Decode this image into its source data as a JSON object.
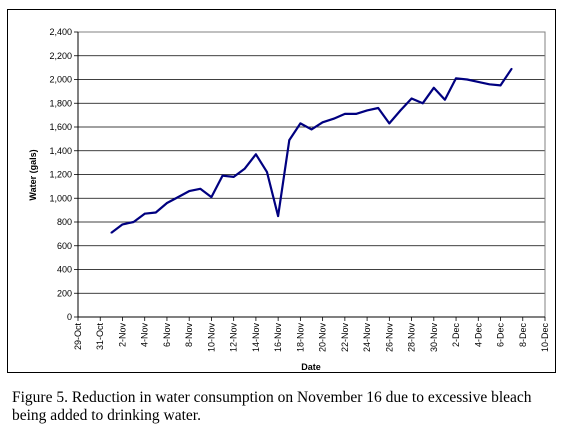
{
  "chart_data": {
    "type": "line",
    "xlabel": "Date",
    "ylabel": "Water (gals)",
    "x_tick_labels": [
      "29-Oct",
      "31-Oct",
      "2-Nov",
      "4-Nov",
      "6-Nov",
      "8-Nov",
      "10-Nov",
      "12-Nov",
      "14-Nov",
      "16-Nov",
      "18-Nov",
      "20-Nov",
      "22-Nov",
      "24-Nov",
      "26-Nov",
      "28-Nov",
      "30-Nov",
      "2-Dec",
      "4-Dec",
      "6-Dec",
      "8-Dec",
      "10-Dec"
    ],
    "y_tick_labels": [
      "0",
      "200",
      "400",
      "600",
      "800",
      "1,000",
      "1,200",
      "1,400",
      "1,600",
      "1,800",
      "2,000",
      "2,200",
      "2,400"
    ],
    "xlim": [
      "29-Oct",
      "10-Dec"
    ],
    "ylim": [
      0,
      2400
    ],
    "grid": "horizontal",
    "legend": "none",
    "series": [
      {
        "color": "#000080",
        "x": [
          "1-Nov",
          "2-Nov",
          "3-Nov",
          "4-Nov",
          "5-Nov",
          "6-Nov",
          "7-Nov",
          "8-Nov",
          "9-Nov",
          "10-Nov",
          "11-Nov",
          "12-Nov",
          "13-Nov",
          "14-Nov",
          "15-Nov",
          "16-Nov",
          "17-Nov",
          "18-Nov",
          "19-Nov",
          "20-Nov",
          "21-Nov",
          "22-Nov",
          "23-Nov",
          "24-Nov",
          "25-Nov",
          "26-Nov",
          "27-Nov",
          "28-Nov",
          "29-Nov",
          "30-Nov",
          "1-Dec",
          "2-Dec",
          "3-Dec",
          "4-Dec",
          "5-Dec",
          "6-Dec",
          "7-Dec"
        ],
        "values": [
          710,
          780,
          800,
          870,
          880,
          960,
          1010,
          1060,
          1080,
          1010,
          1190,
          1180,
          1250,
          1370,
          1220,
          850,
          1490,
          1630,
          1580,
          1640,
          1670,
          1710,
          1710,
          1740,
          1760,
          1630,
          1740,
          1840,
          1800,
          1930,
          1830,
          2010,
          2000,
          1980,
          1960,
          1950,
          2090
        ]
      }
    ]
  },
  "caption": {
    "text": "Figure 5.  Reduction in water consumption on November 16 due to excessive bleach being added to drinking water."
  }
}
